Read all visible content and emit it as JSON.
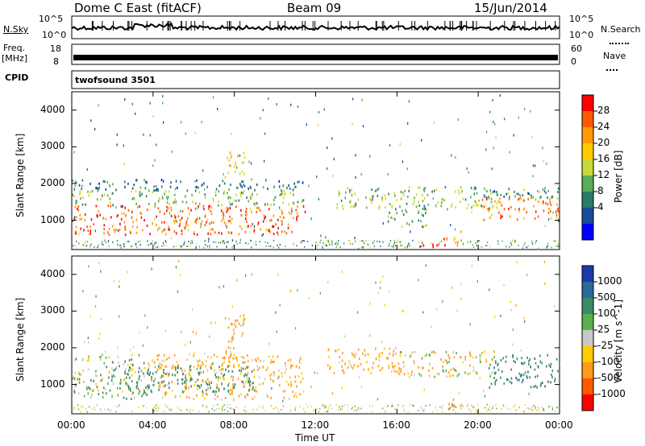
{
  "header": {
    "station": "Dome C East (fitACF)",
    "beam": "Beam 09",
    "date": "15/Jun/2014"
  },
  "top_panels": {
    "nsky_label": "N.Sky",
    "nsearch_label": "N.Search",
    "noise_ticks_left": [
      "10^5",
      "10^0"
    ],
    "noise_ticks_right": [
      "10^5",
      "10^0"
    ],
    "freq_label_1": "Freq.",
    "freq_label_2": "[MHz]",
    "freq_ticks": [
      "18",
      "8"
    ],
    "nave_label": "Nave",
    "nave_ticks": [
      "60",
      "0"
    ],
    "cpid_label": "CPID",
    "cpid_value": "twofsound 3501"
  },
  "chart_data": [
    {
      "type": "heatmap",
      "panel": "power",
      "xlabel": "Time UT",
      "ylabel": "Slant Range [km]",
      "x_ticks": [
        "00:00",
        "04:00",
        "08:00",
        "12:00",
        "16:00",
        "20:00",
        "00:00"
      ],
      "y_ticks": [
        1000,
        2000,
        3000,
        4000
      ],
      "ylim": [
        200,
        4500
      ],
      "xlim_hours": [
        0,
        24
      ],
      "colorbar_label": "Power [dB]",
      "colorbar_ticks": [
        "28",
        "24",
        "20",
        "16",
        "12",
        "8",
        "4"
      ],
      "colorbar_colors": [
        "#ff0000",
        "#ff5a00",
        "#ff9a00",
        "#ffcc00",
        "#c8d83a",
        "#5aab5a",
        "#2a7a6a",
        "#1a4a9a",
        "#0000ff"
      ],
      "regions": [
        {
          "t0": 0.0,
          "t1": 11.5,
          "r0": 600,
          "r1": 1400,
          "value": 26
        },
        {
          "t0": 0.0,
          "t1": 11.5,
          "r0": 1400,
          "r1": 1800,
          "value": 14
        },
        {
          "t0": 0.0,
          "t1": 11.5,
          "r0": 1800,
          "r1": 2100,
          "value": 8
        },
        {
          "t0": 7.5,
          "t1": 8.5,
          "r0": 2100,
          "r1": 2900,
          "value": 18
        },
        {
          "t0": 13.0,
          "t1": 21.0,
          "r0": 1300,
          "r1": 1900,
          "value": 14
        },
        {
          "t0": 20.0,
          "t1": 24.0,
          "r0": 1000,
          "r1": 1600,
          "value": 24
        },
        {
          "t0": 20.0,
          "t1": 24.0,
          "r0": 1600,
          "r1": 1900,
          "value": 10
        },
        {
          "t0": 17.0,
          "t1": 18.5,
          "r0": 250,
          "r1": 500,
          "value": 28
        },
        {
          "t0": 18.5,
          "t1": 19.2,
          "r0": 300,
          "r1": 700,
          "value": 20
        },
        {
          "t0": 15.5,
          "t1": 17.5,
          "r0": 800,
          "r1": 1400,
          "value": 12
        }
      ]
    },
    {
      "type": "heatmap",
      "panel": "velocity",
      "xlabel": "Time UT",
      "ylabel": "Slant Range [km]",
      "x_ticks": [
        "00:00",
        "04:00",
        "08:00",
        "12:00",
        "16:00",
        "20:00",
        "00:00"
      ],
      "y_ticks": [
        1000,
        2000,
        3000,
        4000
      ],
      "ylim": [
        200,
        4500
      ],
      "xlim_hours": [
        0,
        24
      ],
      "colorbar_label": "Velocity [m s^-1]",
      "colorbar_ticks": [
        "1000",
        "500",
        "100",
        "25",
        "-25",
        "-100",
        "-500",
        "-1000"
      ],
      "colorbar_colors": [
        "#1a3aa8",
        "#2a6a9a",
        "#3a8a6a",
        "#5ab04a",
        "#c8c8c8",
        "#ffcc00",
        "#ff9a1a",
        "#ff5a00",
        "#ff0000"
      ],
      "regions": [
        {
          "t0": 0.0,
          "t1": 4.0,
          "r0": 600,
          "r1": 1800,
          "value": 60
        },
        {
          "t0": 4.0,
          "t1": 11.5,
          "r0": 600,
          "r1": 1800,
          "value": -150
        },
        {
          "t0": 2.0,
          "t1": 9.0,
          "r0": 800,
          "r1": 1500,
          "value": 300
        },
        {
          "t0": 7.5,
          "t1": 8.5,
          "r0": 1500,
          "r1": 2900,
          "value": -150
        },
        {
          "t0": 12.5,
          "t1": 16.0,
          "r0": 1300,
          "r1": 2000,
          "value": -150
        },
        {
          "t0": 16.0,
          "t1": 21.0,
          "r0": 1200,
          "r1": 1900,
          "value": -60
        },
        {
          "t0": 20.5,
          "t1": 24.0,
          "r0": 900,
          "r1": 1800,
          "value": 400
        },
        {
          "t0": 18.5,
          "t1": 19.2,
          "r0": 300,
          "r1": 700,
          "value": -150
        }
      ]
    }
  ]
}
